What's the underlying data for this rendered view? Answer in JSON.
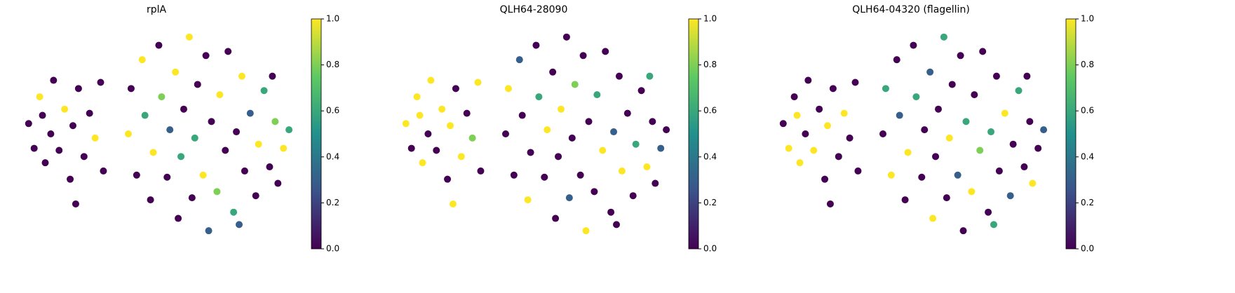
{
  "chart_data": [
    {
      "type": "scatter",
      "title": "rplA",
      "colormap": "viridis",
      "x": [
        0.4,
        0.6,
        0.8,
        1.0,
        1.2,
        1.3,
        1.5,
        1.7,
        1.9,
        2.0,
        2.2,
        2.4,
        2.6,
        2.8,
        3.0,
        3.1,
        0.9,
        2.1,
        4.0,
        4.1,
        4.3,
        4.5,
        4.6,
        4.8,
        4.9,
        5.1,
        5.2,
        5.4,
        5.5,
        5.7,
        5.8,
        5.9,
        6.0,
        6.2,
        6.3,
        6.4,
        6.5,
        6.7,
        6.8,
        6.9,
        7.0,
        7.2,
        7.3,
        7.5,
        7.6,
        7.8,
        7.9,
        8.1,
        8.2,
        8.4,
        8.6,
        8.7,
        8.9,
        9.1,
        9.3,
        9.4,
        9.6,
        9.8,
        9.2,
        8.0
      ],
      "y": [
        5.5,
        4.3,
        6.8,
        3.6,
        5.0,
        7.6,
        4.2,
        6.2,
        2.8,
        5.4,
        7.2,
        3.9,
        6.0,
        4.8,
        7.5,
        3.2,
        5.9,
        1.6,
        5.0,
        7.2,
        3.0,
        8.6,
        5.9,
        1.8,
        4.1,
        9.3,
        6.8,
        2.9,
        5.2,
        8.0,
        0.9,
        3.9,
        6.2,
        9.7,
        1.9,
        4.8,
        7.4,
        3.0,
        8.8,
        0.3,
        5.6,
        2.2,
        6.9,
        4.2,
        9.0,
        1.2,
        5.1,
        7.8,
        3.2,
        6.0,
        2.0,
        4.5,
        7.1,
        3.4,
        5.6,
        2.6,
        4.3,
        5.2,
        7.8,
        0.6
      ],
      "values": [
        0,
        0,
        1,
        0,
        0,
        0,
        0,
        1,
        0,
        0,
        0,
        0,
        0,
        1,
        0,
        0,
        0,
        0,
        1,
        0,
        0,
        1,
        0.6,
        0,
        1,
        0,
        0.8,
        0,
        0.3,
        1,
        0,
        0.6,
        0,
        1,
        0,
        0.6,
        0,
        1,
        0,
        0.3,
        0,
        0.8,
        1,
        0,
        0,
        0.6,
        0,
        1,
        0,
        0.3,
        0,
        1,
        0.6,
        0,
        0.8,
        0,
        1,
        0.6,
        0,
        0.3
      ],
      "xlim": [
        0,
        10
      ],
      "ylim": [
        0,
        10
      ],
      "clim": [
        0,
        1
      ],
      "cticks": [
        {
          "value": 0,
          "label": "0.0"
        },
        0.2,
        0.4,
        0.6,
        0.8,
        {
          "value": 1,
          "label": "1.0"
        }
      ]
    },
    {
      "type": "scatter",
      "title": "QLH64-28090",
      "colormap": "viridis",
      "x": [
        0.4,
        0.6,
        0.8,
        1.0,
        1.2,
        1.3,
        1.5,
        1.7,
        1.9,
        2.0,
        2.2,
        2.4,
        2.6,
        2.8,
        3.0,
        3.1,
        0.9,
        2.1,
        4.0,
        4.1,
        4.3,
        4.5,
        4.6,
        4.8,
        4.9,
        5.1,
        5.2,
        5.4,
        5.5,
        5.7,
        5.8,
        5.9,
        6.0,
        6.2,
        6.3,
        6.4,
        6.5,
        6.7,
        6.8,
        6.9,
        7.0,
        7.2,
        7.3,
        7.5,
        7.6,
        7.8,
        7.9,
        8.1,
        8.2,
        8.4,
        8.6,
        8.7,
        8.9,
        9.1,
        9.3,
        9.4,
        9.6,
        9.8,
        9.2,
        8.0
      ],
      "y": [
        5.5,
        4.3,
        6.8,
        3.6,
        5.0,
        7.6,
        4.2,
        6.2,
        2.8,
        5.4,
        7.2,
        3.9,
        6.0,
        4.8,
        7.5,
        3.2,
        5.9,
        1.6,
        5.0,
        7.2,
        3.0,
        8.6,
        5.9,
        1.8,
        4.1,
        9.3,
        6.8,
        2.9,
        5.2,
        8.0,
        0.9,
        3.9,
        6.2,
        9.7,
        1.9,
        4.8,
        7.4,
        3.0,
        8.8,
        0.3,
        5.6,
        2.2,
        6.9,
        4.2,
        9.0,
        1.2,
        5.1,
        7.8,
        3.2,
        6.0,
        2.0,
        4.5,
        7.1,
        3.4,
        5.6,
        2.6,
        4.3,
        5.2,
        7.8,
        0.6
      ],
      "values": [
        1,
        0,
        1,
        1,
        0,
        1,
        0,
        1,
        0,
        1,
        0,
        1,
        0,
        0.8,
        1,
        0,
        1,
        1,
        0,
        1,
        0,
        0.3,
        0,
        1,
        0,
        0,
        0.6,
        0,
        1,
        0,
        0,
        0,
        1,
        0,
        0.3,
        0,
        0.8,
        0,
        0,
        1,
        0,
        0,
        0.6,
        1,
        0,
        0,
        0.3,
        0,
        1,
        0,
        0,
        0.6,
        0,
        1,
        0,
        0,
        0.3,
        0,
        0.6,
        0
      ],
      "xlim": [
        0,
        10
      ],
      "ylim": [
        0,
        10
      ],
      "clim": [
        0,
        1
      ],
      "cticks": [
        {
          "value": 0,
          "label": "0.0"
        },
        0.2,
        0.4,
        0.6,
        0.8,
        {
          "value": 1,
          "label": "1.0"
        }
      ]
    },
    {
      "type": "scatter",
      "title": "QLH64-04320 (flagellin)",
      "colormap": "viridis",
      "x": [
        0.4,
        0.6,
        0.8,
        1.0,
        1.2,
        1.3,
        1.5,
        1.7,
        1.9,
        2.0,
        2.2,
        2.4,
        2.6,
        2.8,
        3.0,
        3.1,
        0.9,
        2.1,
        4.0,
        4.1,
        4.3,
        4.5,
        4.6,
        4.8,
        4.9,
        5.1,
        5.2,
        5.4,
        5.5,
        5.7,
        5.8,
        5.9,
        6.0,
        6.2,
        6.3,
        6.4,
        6.5,
        6.7,
        6.8,
        6.9,
        7.0,
        7.2,
        7.3,
        7.5,
        7.6,
        7.8,
        7.9,
        8.1,
        8.2,
        8.4,
        8.6,
        8.7,
        8.9,
        9.1,
        9.3,
        9.4,
        9.6,
        9.8,
        9.2,
        8.0
      ],
      "y": [
        5.5,
        4.3,
        6.8,
        3.6,
        5.0,
        7.6,
        4.2,
        6.2,
        2.8,
        5.4,
        7.2,
        3.9,
        6.0,
        4.8,
        7.5,
        3.2,
        5.9,
        1.6,
        5.0,
        7.2,
        3.0,
        8.6,
        5.9,
        1.8,
        4.1,
        9.3,
        6.8,
        2.9,
        5.2,
        8.0,
        0.9,
        3.9,
        6.2,
        9.7,
        1.9,
        4.8,
        7.4,
        3.0,
        8.8,
        0.3,
        5.6,
        2.2,
        6.9,
        4.2,
        9.0,
        1.2,
        5.1,
        7.8,
        3.2,
        6.0,
        2.0,
        4.5,
        7.1,
        3.4,
        5.6,
        2.6,
        4.3,
        5.2,
        7.8,
        0.6
      ],
      "values": [
        0,
        1,
        0,
        1,
        0,
        0,
        1,
        0,
        0,
        1,
        0,
        0,
        1,
        0,
        0,
        0,
        1,
        0,
        0,
        0.6,
        1,
        0,
        0.3,
        0,
        1,
        0,
        0.6,
        0,
        0,
        0.3,
        1,
        0,
        0,
        0.6,
        0,
        1,
        0,
        0.3,
        0,
        0,
        0.6,
        1,
        0,
        0.8,
        0,
        0,
        0.6,
        0,
        0,
        1,
        0.3,
        0,
        0.6,
        0,
        0,
        1,
        0,
        0.3,
        0,
        0.6
      ],
      "xlim": [
        0,
        10
      ],
      "ylim": [
        0,
        10
      ],
      "clim": [
        0,
        1
      ],
      "cticks": [
        {
          "value": 0,
          "label": "0.0"
        },
        0.2,
        0.4,
        0.6,
        0.8,
        {
          "value": 1,
          "label": "1.0"
        }
      ]
    }
  ]
}
